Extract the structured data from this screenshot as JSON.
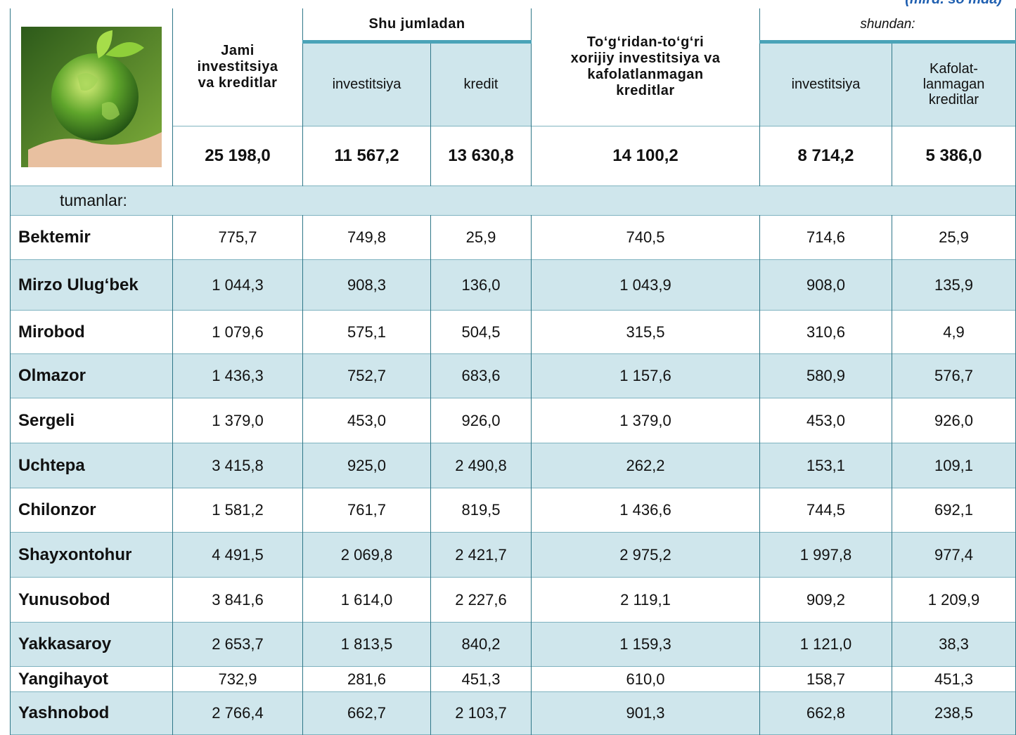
{
  "unit": "(mlrd. so‘mda)",
  "header": {
    "total": "Jami\ninvestitsiya\nva kreditlar",
    "group1": "Shu jumladan",
    "group1_cols": [
      "investitsiya",
      "kredit"
    ],
    "fdi": "To‘g‘ridan-to‘g‘ri\nxorijiy investitsiya  va\nkafolatlanmagan\nkreditlar",
    "group2": "shundan:",
    "group2_cols": [
      "investitsiya",
      "Kafolat-\nlanmagan\nkreditlar"
    ]
  },
  "totals": [
    "25 198,0",
    "11 567,2",
    "13 630,8",
    "14 100,2",
    "8 714,2",
    "5 386,0"
  ],
  "section": "tumanlar:",
  "rows": [
    [
      "Bektemir",
      "775,7",
      "749,8",
      "25,9",
      "740,5",
      "714,6",
      "25,9"
    ],
    [
      "Mirzo Ulug‘bek",
      "1 044,3",
      "908,3",
      "136,0",
      "1 043,9",
      "908,0",
      "135,9"
    ],
    [
      "Mirobod",
      "1 079,6",
      "575,1",
      "504,5",
      "315,5",
      "310,6",
      "4,9"
    ],
    [
      "Olmazor",
      "1 436,3",
      "752,7",
      "683,6",
      "1 157,6",
      "580,9",
      "576,7"
    ],
    [
      "Sergeli",
      "1 379,0",
      "453,0",
      "926,0",
      "1 379,0",
      "453,0",
      "926,0"
    ],
    [
      "Uchtepa",
      "3 415,8",
      "925,0",
      "2 490,8",
      "262,2",
      "153,1",
      "109,1"
    ],
    [
      "Chilonzor",
      "1 581,2",
      "761,7",
      "819,5",
      "1 436,6",
      "744,5",
      "692,1"
    ],
    [
      "Shayxontohur",
      "4 491,5",
      "2 069,8",
      "2 421,7",
      "2 975,2",
      "1 997,8",
      "977,4"
    ],
    [
      "Yunusobod",
      "3 841,6",
      "1 614,0",
      "2 227,6",
      "2 119,1",
      "909,2",
      "1 209,9"
    ],
    [
      "Yakkasaroy",
      "2 653,7",
      "1 813,5",
      "840,2",
      "1 159,3",
      "1 121,0",
      "38,3"
    ],
    [
      "Yangihayot",
      "732,9",
      "281,6",
      "451,3",
      "610,0",
      "158,7",
      "451,3"
    ],
    [
      "Yashnobod",
      "2 766,4",
      "662,7",
      "2 103,7",
      "901,3",
      "662,8",
      "238,5"
    ]
  ]
}
